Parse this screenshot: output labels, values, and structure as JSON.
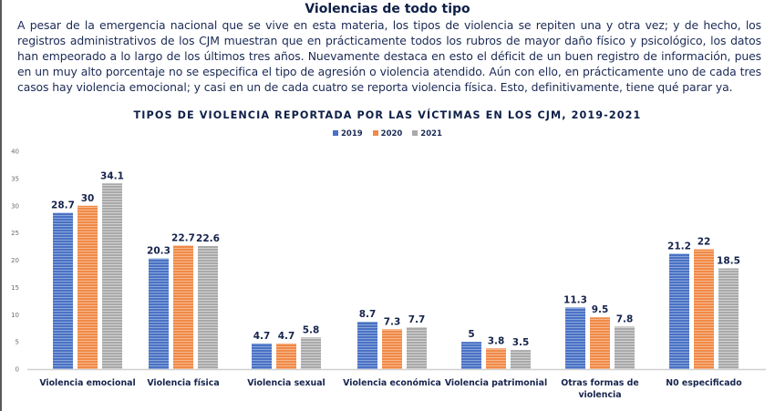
{
  "header": {
    "title": "Violencias de todo tipo",
    "paragraph": "A pesar de la emergencia nacional que se vive en esta materia, los tipos de violencia se repiten una y otra vez; y de hecho, los registros administrativos de los CJM muestran que en prácticamente todos los rubros de mayor daño físico y psicológico, los datos han empeorado a lo largo de los últimos tres años. Nuevamente destaca en esto el déficit de un buen registro de información, pues en un muy alto porcentaje no se especifica el tipo de agresión o violencia atendido. Aún con ello, en prácticamente uno de cada tres casos hay violencia emocional; y casi en un de cada cuatro se reporta violencia física. Esto, definitivamente, tiene qué parar ya."
  },
  "chart_data": {
    "type": "bar",
    "title": "TIPOS DE VIOLENCIA REPORTADA POR LAS VÍCTIMAS EN LOS CJM, 2019-2021",
    "xlabel": "",
    "ylabel": "",
    "ylim": [
      0,
      40
    ],
    "yticks": [
      0,
      5,
      10,
      15,
      20,
      25,
      30,
      35,
      40
    ],
    "grid": false,
    "legend_position": "top-center",
    "categories": [
      [
        "Violencia emocional"
      ],
      [
        "Violencia física"
      ],
      [
        "Violencia sexual"
      ],
      [
        "Violencia económica"
      ],
      [
        "Violencia patrimonial"
      ],
      [
        "Otras formas de",
        "violencia"
      ],
      [
        "N0 especificado"
      ]
    ],
    "series": [
      {
        "name": "2019",
        "color": "#4a72c4",
        "values": [
          28.7,
          20.3,
          4.7,
          8.7,
          5,
          11.3,
          21.2
        ],
        "labels": [
          "28.7",
          "20.3",
          "4.7",
          "8.7",
          "5",
          "11.3",
          "21.2"
        ]
      },
      {
        "name": "2020",
        "color": "#f08a48",
        "values": [
          30,
          22.7,
          4.7,
          7.3,
          3.8,
          9.5,
          22
        ],
        "labels": [
          "30",
          "22.7",
          "4.7",
          "7.3",
          "3.8",
          "9.5",
          "22"
        ]
      },
      {
        "name": "2021",
        "color": "#a9a9a9",
        "values": [
          34.1,
          22.6,
          5.8,
          7.7,
          3.5,
          7.8,
          18.5
        ],
        "labels": [
          "34.1",
          "22.6",
          "5.8",
          "7.7",
          "3.5",
          "7.8",
          "18.5"
        ]
      }
    ]
  }
}
